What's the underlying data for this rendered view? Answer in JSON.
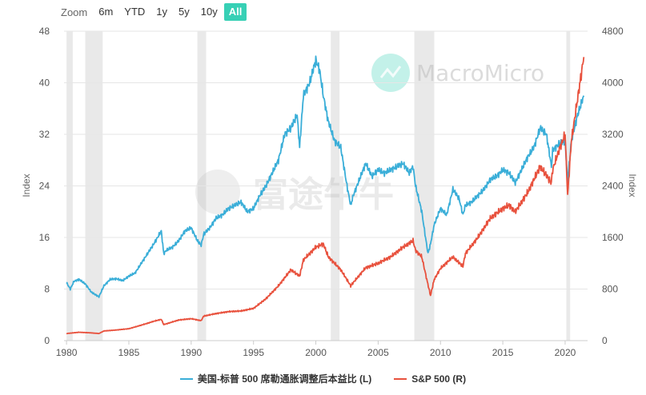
{
  "zoom": {
    "label": "Zoom",
    "buttons": [
      "6m",
      "YTD",
      "1y",
      "5y",
      "10y",
      "All"
    ],
    "active": "All"
  },
  "watermarks": {
    "macromicro": "MacroMicro",
    "futu": "富途牛牛"
  },
  "colors": {
    "cape": "#3aaed8",
    "sp500": "#e8513d",
    "recession": "#e9e9e9",
    "accent": "#37d0b5"
  },
  "chart_data": {
    "type": "line",
    "xlabel": "",
    "x_ticks": [
      1980,
      1985,
      1990,
      1995,
      2000,
      2005,
      2010,
      2015,
      2020
    ],
    "xlim": [
      1979.8,
      2021.8
    ],
    "y_left": {
      "label": "Index",
      "ylim": [
        0,
        48
      ],
      "ticks": [
        0,
        8,
        16,
        24,
        32,
        40,
        48
      ]
    },
    "y_right": {
      "label": "Index",
      "ylim": [
        0,
        4800
      ],
      "ticks": [
        0,
        800,
        1600,
        2400,
        3200,
        4000,
        4800
      ]
    },
    "recessions": [
      [
        1980.0,
        1980.5
      ],
      [
        1981.5,
        1982.9
      ],
      [
        1990.5,
        1991.2
      ],
      [
        2001.2,
        2001.9
      ],
      [
        2007.9,
        2009.5
      ],
      [
        2020.1,
        2020.4
      ]
    ],
    "legend_position": "bottom",
    "series": [
      {
        "name": "美国-标普 500 席勒通胀调整后本益比 (L)",
        "axis": "left",
        "x": [
          1980.0,
          1980.3,
          1980.6,
          1981.0,
          1981.5,
          1982.0,
          1982.6,
          1983.0,
          1983.5,
          1984.0,
          1984.5,
          1985.0,
          1985.5,
          1986.0,
          1986.5,
          1987.0,
          1987.6,
          1987.8,
          1988.0,
          1988.5,
          1989.0,
          1989.5,
          1990.0,
          1990.5,
          1990.8,
          1991.0,
          1991.5,
          1992.0,
          1992.5,
          1993.0,
          1993.5,
          1994.0,
          1994.5,
          1995.0,
          1995.5,
          1996.0,
          1996.5,
          1997.0,
          1997.5,
          1998.0,
          1998.5,
          1998.7,
          1999.0,
          1999.5,
          2000.0,
          2000.3,
          2000.6,
          2001.0,
          2001.5,
          2002.0,
          2002.5,
          2002.8,
          2003.0,
          2003.5,
          2004.0,
          2004.5,
          2005.0,
          2005.5,
          2006.0,
          2006.5,
          2007.0,
          2007.5,
          2007.8,
          2008.0,
          2008.5,
          2008.8,
          2009.0,
          2009.2,
          2009.5,
          2010.0,
          2010.5,
          2011.0,
          2011.5,
          2011.8,
          2012.0,
          2012.5,
          2013.0,
          2013.5,
          2014.0,
          2014.5,
          2015.0,
          2015.5,
          2016.0,
          2016.5,
          2017.0,
          2017.5,
          2018.0,
          2018.5,
          2018.9,
          2019.0,
          2019.5,
          2020.0,
          2020.2,
          2020.5,
          2021.0,
          2021.5
        ],
        "values": [
          9.0,
          8.0,
          9.2,
          9.5,
          8.8,
          7.5,
          6.8,
          8.5,
          9.5,
          9.6,
          9.3,
          10.0,
          10.5,
          12.0,
          13.5,
          15.0,
          17.0,
          13.5,
          14.0,
          14.5,
          15.5,
          17.0,
          17.5,
          15.5,
          14.8,
          16.5,
          17.5,
          19.0,
          19.5,
          20.5,
          21.0,
          21.5,
          20.0,
          20.5,
          22.5,
          24.0,
          26.0,
          28.0,
          32.0,
          33.0,
          35.0,
          30.0,
          38.0,
          40.0,
          43.5,
          42.0,
          38.0,
          34.0,
          31.0,
          30.0,
          24.0,
          21.0,
          22.5,
          25.0,
          27.5,
          25.5,
          26.5,
          26.0,
          26.5,
          27.0,
          27.5,
          26.0,
          27.0,
          24.0,
          20.0,
          16.0,
          13.5,
          15.0,
          18.0,
          20.5,
          19.5,
          23.5,
          22.0,
          19.5,
          21.0,
          21.5,
          22.5,
          23.5,
          25.0,
          25.5,
          26.5,
          26.0,
          24.5,
          26.5,
          28.5,
          30.0,
          33.0,
          32.0,
          27.0,
          29.5,
          30.5,
          31.0,
          24.5,
          31.0,
          35.0,
          38.0
        ]
      },
      {
        "name": "S&P 500 (R)",
        "axis": "right",
        "x": [
          1980.0,
          1981.0,
          1982.0,
          1982.6,
          1983.0,
          1984.0,
          1985.0,
          1986.0,
          1987.0,
          1987.6,
          1987.8,
          1988.0,
          1989.0,
          1990.0,
          1990.8,
          1991.0,
          1992.0,
          1993.0,
          1994.0,
          1995.0,
          1996.0,
          1997.0,
          1998.0,
          1998.7,
          1999.0,
          1999.5,
          2000.0,
          2000.6,
          2001.0,
          2001.5,
          2002.0,
          2002.8,
          2003.0,
          2004.0,
          2005.0,
          2006.0,
          2007.0,
          2007.8,
          2008.0,
          2008.5,
          2008.9,
          2009.2,
          2009.5,
          2010.0,
          2011.0,
          2011.8,
          2012.0,
          2013.0,
          2014.0,
          2015.0,
          2015.5,
          2016.0,
          2017.0,
          2018.0,
          2018.9,
          2019.0,
          2019.5,
          2020.0,
          2020.2,
          2020.5,
          2021.0,
          2021.5
        ],
        "values": [
          110,
          130,
          120,
          110,
          150,
          165,
          185,
          240,
          300,
          330,
          250,
          260,
          320,
          340,
          310,
          380,
          420,
          450,
          460,
          500,
          650,
          850,
          1100,
          1000,
          1250,
          1350,
          1450,
          1500,
          1300,
          1200,
          1100,
          850,
          900,
          1130,
          1200,
          1300,
          1450,
          1550,
          1400,
          1300,
          950,
          700,
          950,
          1120,
          1300,
          1150,
          1350,
          1600,
          1900,
          2050,
          2100,
          2000,
          2300,
          2700,
          2450,
          2650,
          2950,
          3200,
          2250,
          3100,
          3750,
          4400
        ]
      }
    ]
  }
}
